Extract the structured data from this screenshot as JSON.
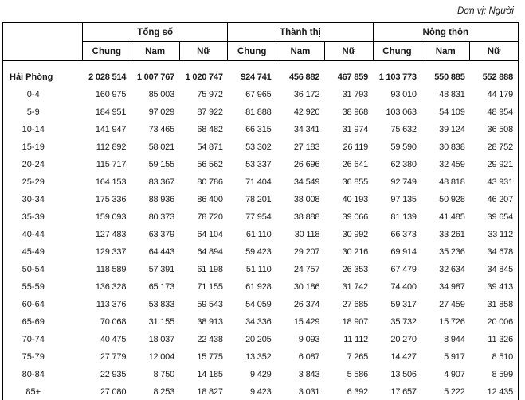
{
  "unit_label": "Đơn vị: Người",
  "table": {
    "groups": [
      {
        "label": "Tổng số",
        "sub": [
          "Chung",
          "Nam",
          "Nữ"
        ]
      },
      {
        "label": "Thành thị",
        "sub": [
          "Chung",
          "Nam",
          "Nữ"
        ]
      },
      {
        "label": "Nông thôn",
        "sub": [
          "Chung",
          "Nam",
          "Nữ"
        ]
      }
    ],
    "rows": [
      {
        "label": "Hải Phòng",
        "bold": true,
        "values": [
          "2 028 514",
          "1 007 767",
          "1 020 747",
          "924 741",
          "456 882",
          "467 859",
          "1 103 773",
          "550 885",
          "552 888"
        ]
      },
      {
        "label": "0-4",
        "bold": false,
        "values": [
          "160 975",
          "85 003",
          "75 972",
          "67 965",
          "36 172",
          "31 793",
          "93 010",
          "48 831",
          "44 179"
        ]
      },
      {
        "label": "5-9",
        "bold": false,
        "values": [
          "184 951",
          "97 029",
          "87 922",
          "81 888",
          "42 920",
          "38 968",
          "103 063",
          "54 109",
          "48 954"
        ]
      },
      {
        "label": "10-14",
        "bold": false,
        "values": [
          "141 947",
          "73 465",
          "68 482",
          "66 315",
          "34 341",
          "31 974",
          "75 632",
          "39 124",
          "36 508"
        ]
      },
      {
        "label": "15-19",
        "bold": false,
        "values": [
          "112 892",
          "58 021",
          "54 871",
          "53 302",
          "27 183",
          "26 119",
          "59 590",
          "30 838",
          "28 752"
        ]
      },
      {
        "label": "20-24",
        "bold": false,
        "values": [
          "115 717",
          "59 155",
          "56 562",
          "53 337",
          "26 696",
          "26 641",
          "62 380",
          "32 459",
          "29 921"
        ]
      },
      {
        "label": "25-29",
        "bold": false,
        "values": [
          "164 153",
          "83 367",
          "80 786",
          "71 404",
          "34 549",
          "36 855",
          "92 749",
          "48 818",
          "43 931"
        ]
      },
      {
        "label": "30-34",
        "bold": false,
        "values": [
          "175 336",
          "88 936",
          "86 400",
          "78 201",
          "38 008",
          "40 193",
          "97 135",
          "50 928",
          "46 207"
        ]
      },
      {
        "label": "35-39",
        "bold": false,
        "values": [
          "159 093",
          "80 373",
          "78 720",
          "77 954",
          "38 888",
          "39 066",
          "81 139",
          "41 485",
          "39 654"
        ]
      },
      {
        "label": "40-44",
        "bold": false,
        "values": [
          "127 483",
          "63 379",
          "64 104",
          "61 110",
          "30 118",
          "30 992",
          "66 373",
          "33 261",
          "33 112"
        ]
      },
      {
        "label": "45-49",
        "bold": false,
        "values": [
          "129 337",
          "64 443",
          "64 894",
          "59 423",
          "29 207",
          "30 216",
          "69 914",
          "35 236",
          "34 678"
        ]
      },
      {
        "label": "50-54",
        "bold": false,
        "values": [
          "118 589",
          "57 391",
          "61 198",
          "51 110",
          "24 757",
          "26 353",
          "67 479",
          "32 634",
          "34 845"
        ]
      },
      {
        "label": "55-59",
        "bold": false,
        "values": [
          "136 328",
          "65 173",
          "71 155",
          "61 928",
          "30 186",
          "31 742",
          "74 400",
          "34 987",
          "39 413"
        ]
      },
      {
        "label": "60-64",
        "bold": false,
        "values": [
          "113 376",
          "53 833",
          "59 543",
          "54 059",
          "26 374",
          "27 685",
          "59 317",
          "27 459",
          "31 858"
        ]
      },
      {
        "label": "65-69",
        "bold": false,
        "values": [
          "70 068",
          "31 155",
          "38 913",
          "34 336",
          "15 429",
          "18 907",
          "35 732",
          "15 726",
          "20 006"
        ]
      },
      {
        "label": "70-74",
        "bold": false,
        "values": [
          "40 475",
          "18 037",
          "22 438",
          "20 205",
          "9 093",
          "11 112",
          "20 270",
          "8 944",
          "11 326"
        ]
      },
      {
        "label": "75-79",
        "bold": false,
        "values": [
          "27 779",
          "12 004",
          "15 775",
          "13 352",
          "6 087",
          "7 265",
          "14 427",
          "5 917",
          "8 510"
        ]
      },
      {
        "label": "80-84",
        "bold": false,
        "values": [
          "22 935",
          "8 750",
          "14 185",
          "9 429",
          "3 843",
          "5 586",
          "13 506",
          "4 907",
          "8 599"
        ]
      },
      {
        "label": "85+",
        "bold": false,
        "values": [
          "27 080",
          "8 253",
          "18 827",
          "9 423",
          "3 031",
          "6 392",
          "17 657",
          "5 222",
          "12 435"
        ]
      }
    ]
  }
}
